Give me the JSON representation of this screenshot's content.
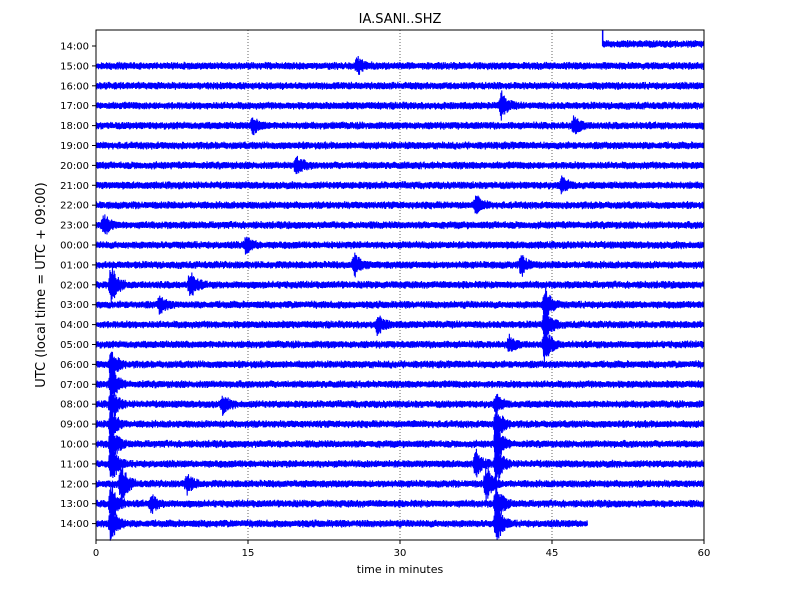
{
  "chart_data": {
    "type": "line",
    "title": "IA.SANI..SHZ",
    "xlabel": "time in minutes",
    "ylabel": "UTC (local time = UTC + 09:00)",
    "xlim": [
      0,
      60
    ],
    "x_ticks": [
      0,
      15,
      30,
      45,
      60
    ],
    "x_tick_labels": [
      "0",
      "15",
      "30",
      "45",
      "60"
    ],
    "grid": "vertical dotted at 15, 30, 45",
    "trace_color": "#0000ff",
    "rows": [
      {
        "label": "14:00",
        "start_min": 50,
        "end_min": 60
      },
      {
        "label": "15:00",
        "start_min": 0,
        "end_min": 60
      },
      {
        "label": "16:00",
        "start_min": 0,
        "end_min": 60
      },
      {
        "label": "17:00",
        "start_min": 0,
        "end_min": 60
      },
      {
        "label": "18:00",
        "start_min": 0,
        "end_min": 60
      },
      {
        "label": "19:00",
        "start_min": 0,
        "end_min": 60
      },
      {
        "label": "20:00",
        "start_min": 0,
        "end_min": 60
      },
      {
        "label": "21:00",
        "start_min": 0,
        "end_min": 60
      },
      {
        "label": "22:00",
        "start_min": 0,
        "end_min": 60
      },
      {
        "label": "23:00",
        "start_min": 0,
        "end_min": 60
      },
      {
        "label": "00:00",
        "start_min": 0,
        "end_min": 60
      },
      {
        "label": "01:00",
        "start_min": 0,
        "end_min": 60
      },
      {
        "label": "02:00",
        "start_min": 0,
        "end_min": 60
      },
      {
        "label": "03:00",
        "start_min": 0,
        "end_min": 60
      },
      {
        "label": "04:00",
        "start_min": 0,
        "end_min": 60
      },
      {
        "label": "05:00",
        "start_min": 0,
        "end_min": 60
      },
      {
        "label": "06:00",
        "start_min": 0,
        "end_min": 60
      },
      {
        "label": "07:00",
        "start_min": 0,
        "end_min": 60
      },
      {
        "label": "08:00",
        "start_min": 0,
        "end_min": 60
      },
      {
        "label": "09:00",
        "start_min": 0,
        "end_min": 60
      },
      {
        "label": "10:00",
        "start_min": 0,
        "end_min": 60
      },
      {
        "label": "11:00",
        "start_min": 0,
        "end_min": 60
      },
      {
        "label": "12:00",
        "start_min": 0,
        "end_min": 60
      },
      {
        "label": "13:00",
        "start_min": 0,
        "end_min": 60
      },
      {
        "label": "14:00",
        "start_min": 0,
        "end_min": 48.5
      }
    ],
    "events": [
      {
        "row": 1,
        "minute": 25.8,
        "amplitude": 1.6
      },
      {
        "row": 3,
        "minute": 40.0,
        "amplitude": 2.5
      },
      {
        "row": 4,
        "minute": 15.5,
        "amplitude": 1.6
      },
      {
        "row": 4,
        "minute": 47.2,
        "amplitude": 1.8
      },
      {
        "row": 6,
        "minute": 19.8,
        "amplitude": 1.8
      },
      {
        "row": 7,
        "minute": 46.0,
        "amplitude": 1.5
      },
      {
        "row": 8,
        "minute": 37.5,
        "amplitude": 1.7
      },
      {
        "row": 9,
        "minute": 0.8,
        "amplitude": 2.0
      },
      {
        "row": 10,
        "minute": 14.8,
        "amplitude": 1.5
      },
      {
        "row": 11,
        "minute": 25.5,
        "amplitude": 2.2
      },
      {
        "row": 11,
        "minute": 42.0,
        "amplitude": 2.0
      },
      {
        "row": 12,
        "minute": 1.5,
        "amplitude": 4.0
      },
      {
        "row": 12,
        "minute": 9.3,
        "amplitude": 2.6
      },
      {
        "row": 13,
        "minute": 6.3,
        "amplitude": 1.6
      },
      {
        "row": 13,
        "minute": 44.3,
        "amplitude": 3.5
      },
      {
        "row": 14,
        "minute": 44.3,
        "amplitude": 4.0
      },
      {
        "row": 14,
        "minute": 27.8,
        "amplitude": 1.8
      },
      {
        "row": 15,
        "minute": 44.3,
        "amplitude": 3.5
      },
      {
        "row": 15,
        "minute": 40.8,
        "amplitude": 1.5
      },
      {
        "row": 16,
        "minute": 1.5,
        "amplitude": 3.0
      },
      {
        "row": 17,
        "minute": 1.5,
        "amplitude": 3.5
      },
      {
        "row": 18,
        "minute": 1.5,
        "amplitude": 3.5
      },
      {
        "row": 18,
        "minute": 12.5,
        "amplitude": 1.6
      },
      {
        "row": 18,
        "minute": 39.5,
        "amplitude": 1.8
      },
      {
        "row": 19,
        "minute": 1.5,
        "amplitude": 3.0
      },
      {
        "row": 19,
        "minute": 39.5,
        "amplitude": 3.5
      },
      {
        "row": 20,
        "minute": 1.5,
        "amplitude": 4.0
      },
      {
        "row": 20,
        "minute": 39.5,
        "amplitude": 4.0
      },
      {
        "row": 21,
        "minute": 1.5,
        "amplitude": 4.0
      },
      {
        "row": 21,
        "minute": 39.5,
        "amplitude": 4.0
      },
      {
        "row": 21,
        "minute": 37.5,
        "amplitude": 2.5
      },
      {
        "row": 22,
        "minute": 2.5,
        "amplitude": 4.0
      },
      {
        "row": 22,
        "minute": 38.5,
        "amplitude": 3.5
      },
      {
        "row": 22,
        "minute": 9.0,
        "amplitude": 1.8
      },
      {
        "row": 23,
        "minute": 1.5,
        "amplitude": 4.0
      },
      {
        "row": 23,
        "minute": 39.5,
        "amplitude": 4.0
      },
      {
        "row": 23,
        "minute": 5.5,
        "amplitude": 1.6
      },
      {
        "row": 24,
        "minute": 1.5,
        "amplitude": 4.0
      },
      {
        "row": 24,
        "minute": 39.5,
        "amplitude": 4.0
      }
    ]
  }
}
